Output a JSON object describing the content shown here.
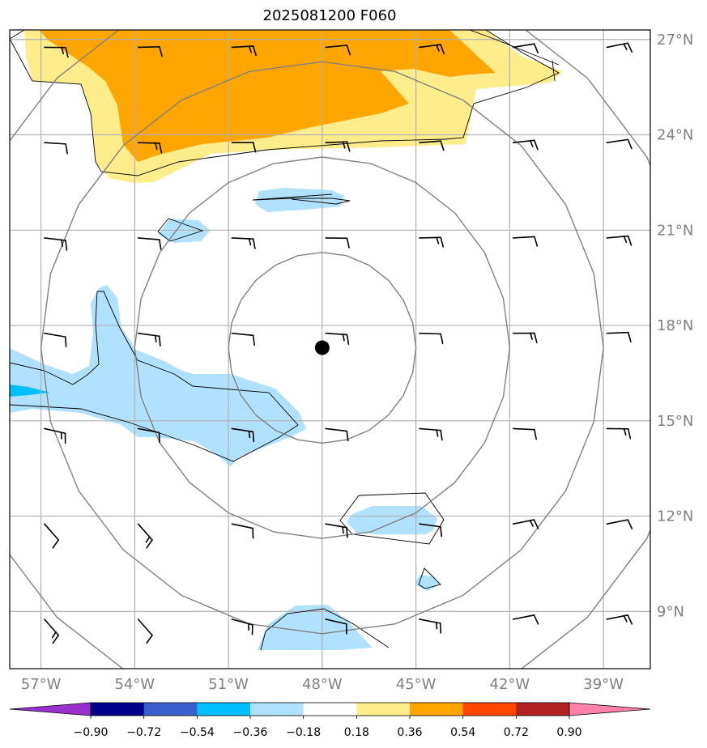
{
  "title": "2025081200 F060",
  "map": {
    "lon_range": [
      -58,
      -37.5
    ],
    "lat_range": [
      7.2,
      27.3
    ],
    "lon_ticks": [
      -57,
      -54,
      -51,
      -48,
      -45,
      -42,
      -39
    ],
    "lon_labels": [
      "57°W",
      "54°W",
      "51°W",
      "48°W",
      "45°W",
      "42°W",
      "39°W"
    ],
    "lat_ticks": [
      9,
      12,
      15,
      18,
      21,
      24,
      27
    ],
    "lat_labels": [
      "9°N",
      "12°N",
      "15°N",
      "18°N",
      "21°N",
      "24°N",
      "27°N"
    ],
    "center": {
      "lon": -48,
      "lat": 17.3
    },
    "range_rings_deg": [
      3,
      6,
      9,
      12
    ]
  },
  "colorbar": {
    "ticks": [
      "−0.90",
      "−0.72",
      "−0.54",
      "−0.36",
      "−0.18",
      "0.18",
      "0.36",
      "0.54",
      "0.72",
      "0.90"
    ],
    "colors": [
      "#9932cc",
      "#00008b",
      "#3a5fcd",
      "#00bfff",
      "#b0e2ff",
      "#ffffff",
      "#ffec8b",
      "#ffa500",
      "#ff4500",
      "#b22222",
      "#ff82ab"
    ]
  },
  "colors": {
    "orange": "#ffa500",
    "light_yellow": "#ffec8b",
    "light_blue": "#b0e2ff",
    "deep_sky": "#00bfff",
    "grid": "#b0b0b0",
    "rings": "#808080"
  }
}
